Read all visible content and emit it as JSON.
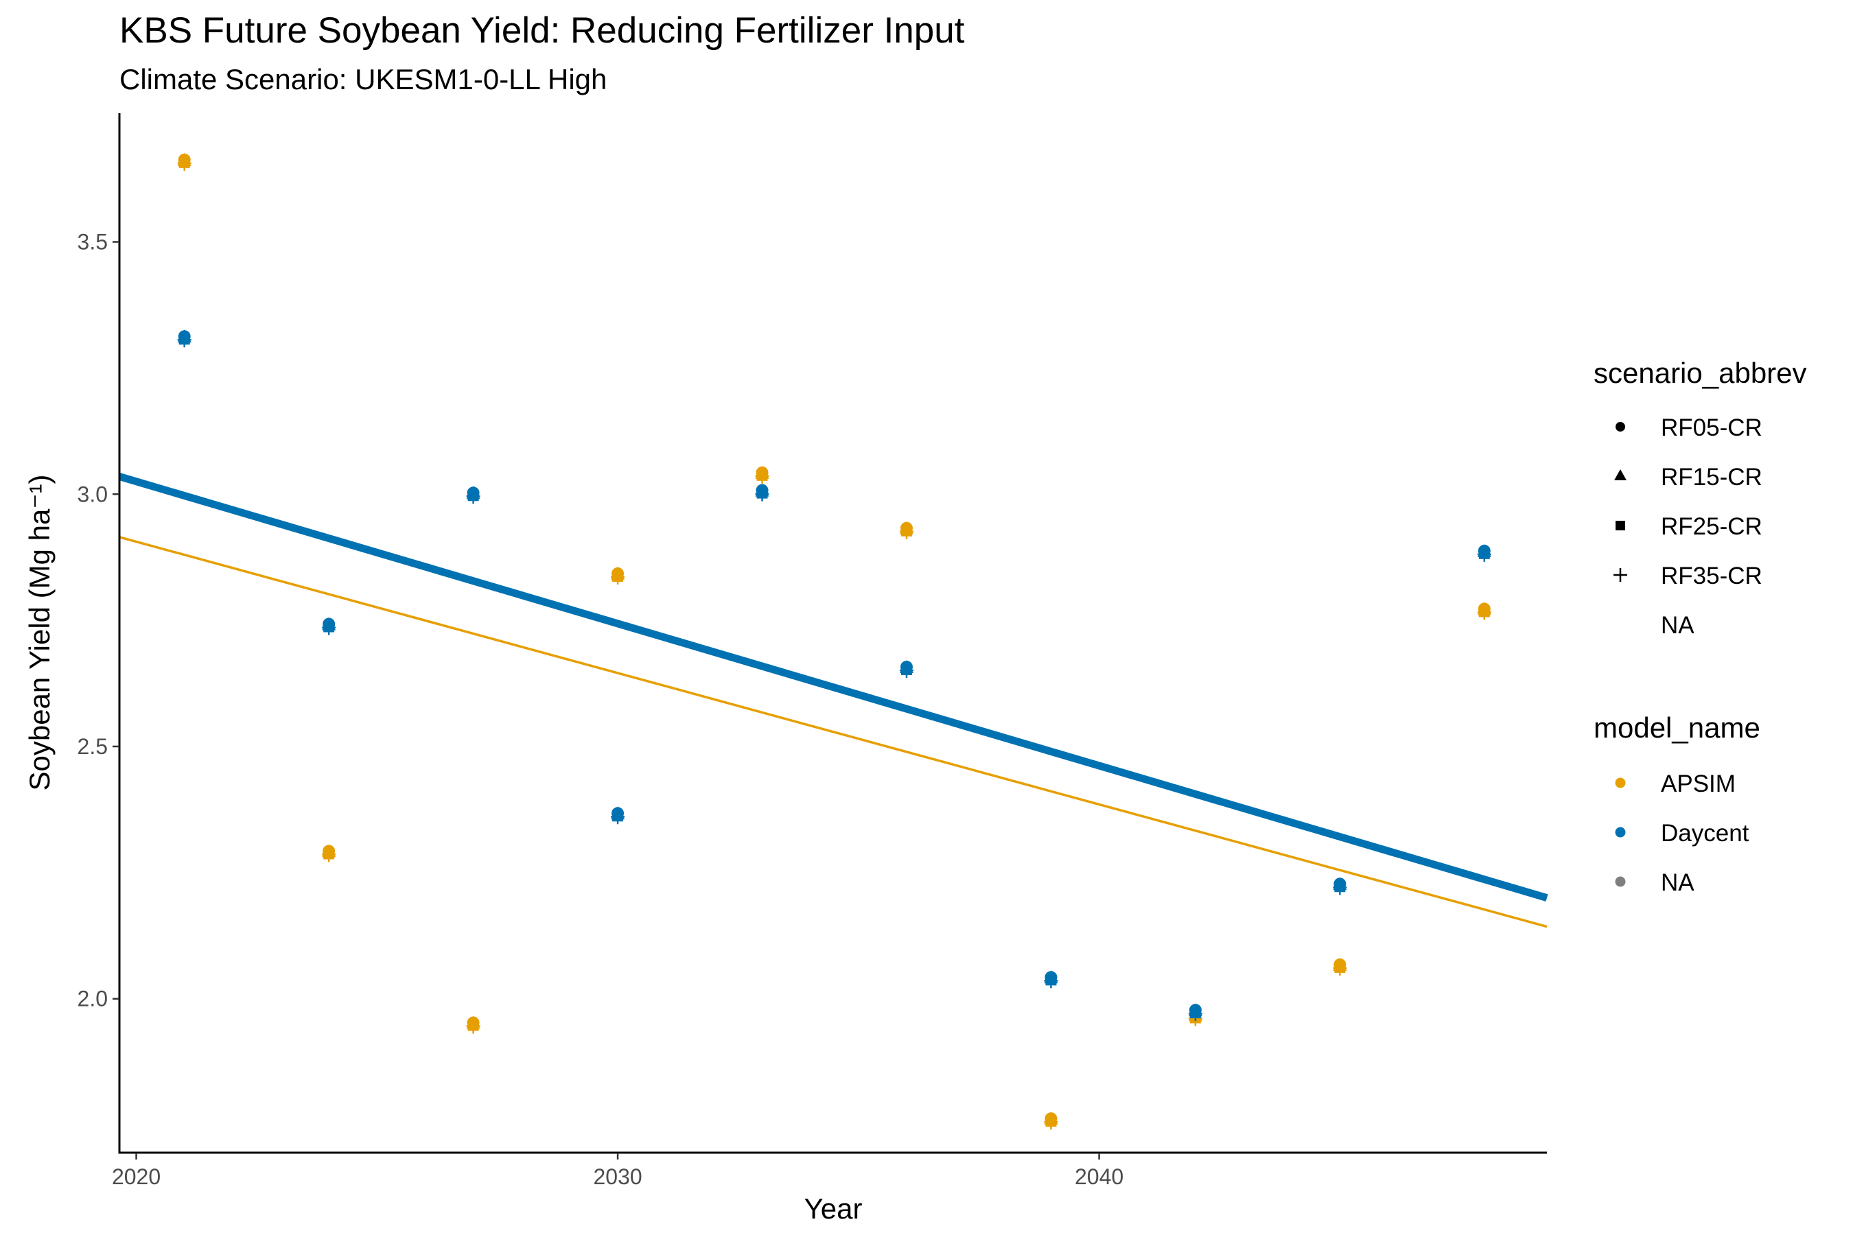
{
  "chart_data": {
    "type": "scatter",
    "title": "KBS Future Soybean Yield: Reducing Fertilizer Input",
    "subtitle": "Climate Scenario: UKESM1-0-LL High",
    "xlabel": "Year",
    "ylabel": "Soybean Yield (Mg ha⁻¹)",
    "xlim": [
      2019.65,
      2049.3
    ],
    "ylim": [
      1.695,
      3.755
    ],
    "x_ticks": [
      2020,
      2030,
      2040
    ],
    "y_ticks": [
      2.0,
      2.5,
      3.0,
      3.5
    ],
    "x_tick_labels": [
      "2020",
      "2030",
      "2040"
    ],
    "y_tick_labels": [
      "2.0",
      "2.5",
      "3.0",
      "3.5"
    ],
    "grid": false,
    "legend_position": "right",
    "colors": {
      "APSIM": "#E69F00",
      "Daycent": "#0072B2",
      "NA": "#7f7f7f"
    },
    "legends": [
      {
        "title": "scenario_abbrev",
        "items": [
          {
            "label": "RF05-CR",
            "shape": "circle"
          },
          {
            "label": "RF15-CR",
            "shape": "triangle"
          },
          {
            "label": "RF25-CR",
            "shape": "square"
          },
          {
            "label": "RF35-CR",
            "shape": "plus"
          },
          {
            "label": "NA",
            "shape": "none"
          }
        ]
      },
      {
        "title": "model_name",
        "items": [
          {
            "label": "APSIM",
            "color": "#E69F00"
          },
          {
            "label": "Daycent",
            "color": "#0072B2"
          },
          {
            "label": "NA",
            "color": "#7f7f7f"
          }
        ]
      }
    ],
    "series": [
      {
        "name": "APSIM",
        "x": [
          2021,
          2024,
          2027,
          2030,
          2033,
          2036,
          2039,
          2042,
          2045,
          2048
        ],
        "y": [
          3.66,
          2.29,
          1.95,
          2.84,
          3.04,
          2.93,
          1.76,
          1.965,
          2.065,
          2.77
        ]
      },
      {
        "name": "Daycent",
        "x": [
          2021,
          2024,
          2027,
          2030,
          2033,
          2036,
          2039,
          2042,
          2045,
          2048
        ],
        "y": [
          3.31,
          2.74,
          3.0,
          2.365,
          3.005,
          2.655,
          2.04,
          1.975,
          2.225,
          2.885
        ]
      }
    ],
    "trendlines": [
      {
        "name": "APSIM",
        "x": [
          2019.65,
          2049.3
        ],
        "y": [
          2.915,
          2.143
        ],
        "color": "#E69F00"
      },
      {
        "name": "Daycent",
        "x": [
          2019.65,
          2049.3
        ],
        "y": [
          3.035,
          2.2
        ],
        "color": "#0072B2"
      }
    ]
  }
}
